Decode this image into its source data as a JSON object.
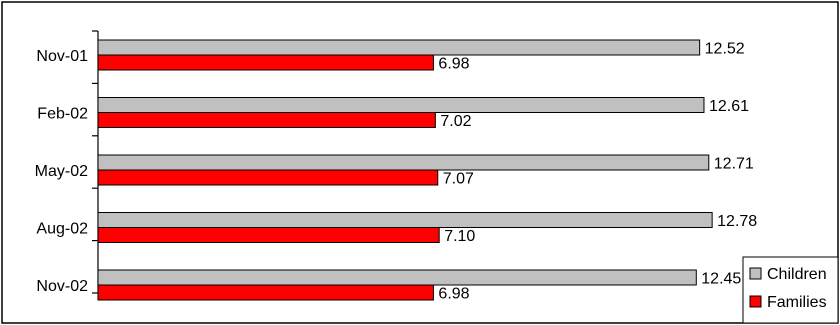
{
  "chart_data": {
    "type": "bar",
    "orientation": "horizontal",
    "categories": [
      "Nov-01",
      "Feb-02",
      "May-02",
      "Aug-02",
      "Nov-02"
    ],
    "series": [
      {
        "name": "Children",
        "values": [
          12.52,
          12.61,
          12.71,
          12.78,
          12.45
        ],
        "color": "#C0C0C0",
        "value_labels": [
          "12.52",
          "12.61",
          "12.71",
          "12.78",
          "12.45"
        ]
      },
      {
        "name": "Families",
        "values": [
          6.98,
          7.02,
          7.07,
          7.1,
          6.98
        ],
        "color": "#FF0000",
        "value_labels": [
          "6.98",
          "7.02",
          "7.07",
          "7.10",
          "6.98"
        ]
      }
    ],
    "xlim": [
      0,
      14.4
    ],
    "grid": false,
    "legend": "bottom-right"
  }
}
